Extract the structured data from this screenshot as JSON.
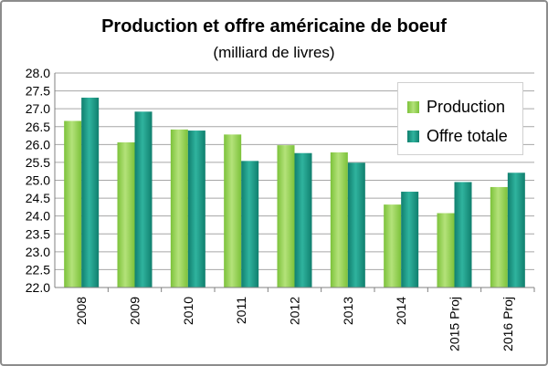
{
  "chart_data": {
    "type": "bar",
    "title": "Production et offre américaine de boeuf",
    "subtitle": "(milliard de livres)",
    "xlabel": "",
    "ylabel": "",
    "categories": [
      "2008",
      "2009",
      "2010",
      "2011",
      "2012",
      "2013",
      "2014",
      "2015 Proj",
      "2016 Proj"
    ],
    "series": [
      {
        "name": "Production",
        "color": "#92d050",
        "values": [
          26.66,
          26.06,
          26.42,
          26.28,
          25.98,
          25.78,
          24.32,
          24.08,
          24.81
        ]
      },
      {
        "name": "Offre totale",
        "color": "#1b9b87",
        "values": [
          27.31,
          26.92,
          26.39,
          25.54,
          25.76,
          25.49,
          24.68,
          24.95,
          25.21
        ]
      }
    ],
    "ylim": [
      22.0,
      28.0
    ],
    "yticks": [
      "22.0",
      "22.5",
      "23.0",
      "23.5",
      "24.0",
      "24.5",
      "25.0",
      "25.5",
      "26.0",
      "26.5",
      "27.0",
      "27.5",
      "28.0"
    ],
    "grid": true,
    "legend_position": "top-right"
  }
}
